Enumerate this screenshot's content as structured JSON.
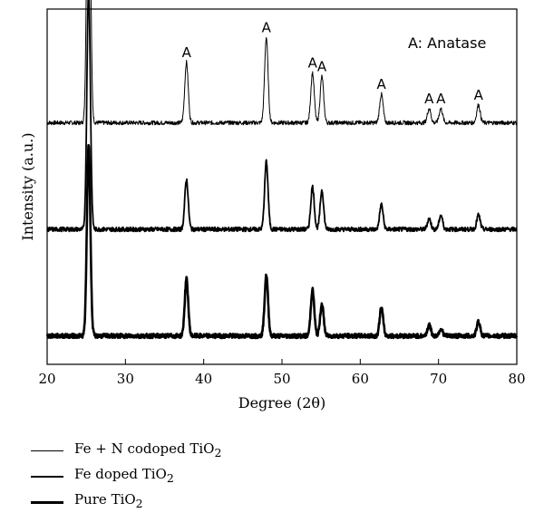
{
  "chart_data": {
    "type": "line",
    "xlabel": "Degree (2θ)",
    "ylabel": "Intensity (a.u.)",
    "xlim": [
      20,
      80
    ],
    "x_ticks": [
      20,
      30,
      40,
      50,
      60,
      70,
      80
    ],
    "y_ticks_shown": false,
    "grid": false,
    "legend_placement": "below",
    "phase_label": "A: Anatase",
    "peak_marker": "A",
    "peak_positions": [
      25.3,
      37.8,
      48.0,
      53.9,
      55.1,
      62.7,
      68.8,
      70.3,
      75.1
    ],
    "series": [
      {
        "name": "Fe + N codoped TiO2",
        "baseline": 0.68,
        "peaks": [
          {
            "x": 25.3,
            "height": 1.0
          },
          {
            "x": 37.8,
            "height": 0.17
          },
          {
            "x": 48.0,
            "height": 0.24
          },
          {
            "x": 53.9,
            "height": 0.14
          },
          {
            "x": 55.1,
            "height": 0.13
          },
          {
            "x": 62.7,
            "height": 0.08
          },
          {
            "x": 68.8,
            "height": 0.04
          },
          {
            "x": 70.3,
            "height": 0.04
          },
          {
            "x": 75.1,
            "height": 0.05
          }
        ]
      },
      {
        "name": "Fe doped TiO2",
        "baseline": 0.38,
        "peaks": [
          {
            "x": 25.3,
            "height": 0.68
          },
          {
            "x": 37.8,
            "height": 0.14
          },
          {
            "x": 48.0,
            "height": 0.19
          },
          {
            "x": 53.9,
            "height": 0.12
          },
          {
            "x": 55.1,
            "height": 0.11
          },
          {
            "x": 62.7,
            "height": 0.07
          },
          {
            "x": 68.8,
            "height": 0.03
          },
          {
            "x": 70.3,
            "height": 0.04
          },
          {
            "x": 75.1,
            "height": 0.04
          }
        ]
      },
      {
        "name": "Pure TiO2",
        "baseline": 0.08,
        "peaks": [
          {
            "x": 25.3,
            "height": 0.54
          },
          {
            "x": 37.8,
            "height": 0.16
          },
          {
            "x": 48.0,
            "height": 0.17
          },
          {
            "x": 53.9,
            "height": 0.13
          },
          {
            "x": 55.1,
            "height": 0.09
          },
          {
            "x": 62.7,
            "height": 0.08
          },
          {
            "x": 68.8,
            "height": 0.03
          },
          {
            "x": 70.3,
            "height": 0.02
          },
          {
            "x": 75.1,
            "height": 0.04
          }
        ]
      }
    ]
  },
  "legend": [
    {
      "prefix": "Fe + N codoped TiO",
      "sub": "2"
    },
    {
      "prefix": "Fe doped TiO",
      "sub": "2"
    },
    {
      "prefix": "Pure TiO",
      "sub": "2"
    }
  ]
}
